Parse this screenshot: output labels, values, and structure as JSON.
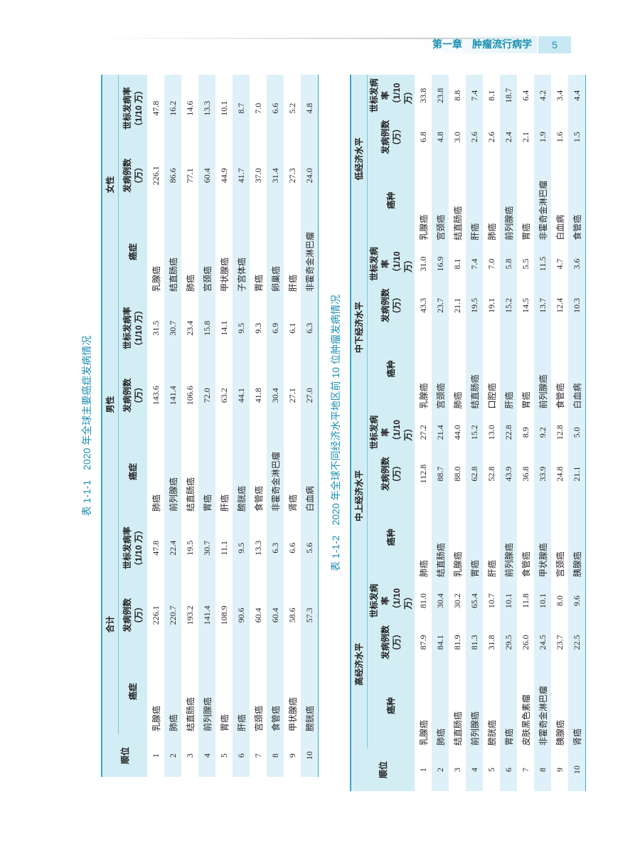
{
  "header": {
    "chapter": "第一章　肿瘤流行病学",
    "page": "5"
  },
  "tables": [
    {
      "title": "表 1-1-1　2020 年全球主要癌症发病情况",
      "rank_header": "顺位",
      "groups": [
        {
          "name": "合计",
          "columns": [
            {
              "name": "癌症"
            },
            {
              "name": "发病例数",
              "unit": "（万）"
            },
            {
              "name": "世标发病率",
              "unit": "（1/10 万）"
            }
          ]
        },
        {
          "name": "男性",
          "columns": [
            {
              "name": "癌症"
            },
            {
              "name": "发病例数",
              "unit": "（万）"
            },
            {
              "name": "世标发病率",
              "unit": "（1/10 万）"
            }
          ]
        },
        {
          "name": "女性",
          "columns": [
            {
              "name": "癌症"
            },
            {
              "name": "发病例数",
              "unit": "（万）"
            },
            {
              "name": "世标发病率",
              "unit": "（1/10 万）"
            }
          ]
        }
      ],
      "rows": [
        {
          "rank": 1,
          "cells": [
            [
              "乳腺癌",
              "226.1",
              "47.8"
            ],
            [
              "肺癌",
              "143.6",
              "31.5"
            ],
            [
              "乳腺癌",
              "226.1",
              "47.8"
            ]
          ]
        },
        {
          "rank": 2,
          "cells": [
            [
              "肺癌",
              "220.7",
              "22.4"
            ],
            [
              "前列腺癌",
              "141.4",
              "30.7"
            ],
            [
              "结直肠癌",
              "86.6",
              "16.2"
            ]
          ]
        },
        {
          "rank": 3,
          "cells": [
            [
              "结直肠癌",
              "193.2",
              "19.5"
            ],
            [
              "结直肠癌",
              "106.6",
              "23.4"
            ],
            [
              "肺癌",
              "77.1",
              "14.6"
            ]
          ]
        },
        {
          "rank": 4,
          "cells": [
            [
              "前列腺癌",
              "141.4",
              "30.7"
            ],
            [
              "胃癌",
              "72.0",
              "15.8"
            ],
            [
              "宫颈癌",
              "60.4",
              "13.3"
            ]
          ]
        },
        {
          "rank": 5,
          "cells": [
            [
              "胃癌",
              "108.9",
              "11.1"
            ],
            [
              "肝癌",
              "63.2",
              "14.1"
            ],
            [
              "甲状腺癌",
              "44.9",
              "10.1"
            ]
          ]
        },
        {
          "rank": 6,
          "cells": [
            [
              "肝癌",
              "90.6",
              "9.5"
            ],
            [
              "膀胱癌",
              "44.1",
              "9.5"
            ],
            [
              "子宫体癌",
              "41.7",
              "8.7"
            ]
          ]
        },
        {
          "rank": 7,
          "cells": [
            [
              "宫颈癌",
              "60.4",
              "13.3"
            ],
            [
              "食管癌",
              "41.8",
              "9.3"
            ],
            [
              "胃癌",
              "37.0",
              "7.0"
            ]
          ]
        },
        {
          "rank": 8,
          "cells": [
            [
              "食管癌",
              "60.4",
              "6.3"
            ],
            [
              "非霍奇金淋巴瘤",
              "30.4",
              "6.9"
            ],
            [
              "卵巢癌",
              "31.4",
              "6.6"
            ]
          ]
        },
        {
          "rank": 9,
          "cells": [
            [
              "甲状腺癌",
              "58.6",
              "6.6"
            ],
            [
              "肾癌",
              "27.1",
              "6.1"
            ],
            [
              "肝癌",
              "27.3",
              "5.2"
            ]
          ]
        },
        {
          "rank": 10,
          "cells": [
            [
              "膀胱癌",
              "57.3",
              "5.6"
            ],
            [
              "白血病",
              "27.0",
              "6.3"
            ],
            [
              "非霍奇金淋巴瘤",
              "24.0",
              "4.8"
            ]
          ]
        }
      ]
    },
    {
      "title": "表 1-1-2　2020 年全球不同经济水平地区前 10 位肿瘤发病情况",
      "rank_header": "顺位",
      "groups": [
        {
          "name": "高经济水平",
          "columns": [
            {
              "name": "癌种"
            },
            {
              "name": "发病例数",
              "unit": "（万）"
            },
            {
              "name": "世标发病率",
              "unit": "（1/10 万）"
            }
          ]
        },
        {
          "name": "中上经济水平",
          "columns": [
            {
              "name": "癌种"
            },
            {
              "name": "发病例数",
              "unit": "（万）"
            },
            {
              "name": "世标发病率",
              "unit": "（1/10 万）"
            }
          ]
        },
        {
          "name": "中下经济水平",
          "columns": [
            {
              "name": "癌种"
            },
            {
              "name": "发病例数",
              "unit": "（万）"
            },
            {
              "name": "世标发病率",
              "unit": "（1/10 万）"
            }
          ]
        },
        {
          "name": "低经济水平",
          "columns": [
            {
              "name": "癌种"
            },
            {
              "name": "发病例数",
              "unit": "（万）"
            },
            {
              "name": "世标发病率",
              "unit": "（1/10 万）"
            }
          ]
        }
      ],
      "rows": [
        {
          "rank": 1,
          "cells": [
            [
              "乳腺癌",
              "87.9",
              "81.0"
            ],
            [
              "肺癌",
              "112.8",
              "27.2"
            ],
            [
              "乳腺癌",
              "43.3",
              "31.0"
            ],
            [
              "乳腺癌",
              "6.8",
              "33.8"
            ]
          ]
        },
        {
          "rank": 2,
          "cells": [
            [
              "肺癌",
              "84.1",
              "30.4"
            ],
            [
              "结直肠癌",
              "88.7",
              "21.4"
            ],
            [
              "宫颈癌",
              "23.7",
              "16.9"
            ],
            [
              "宫颈癌",
              "4.8",
              "23.8"
            ]
          ]
        },
        {
          "rank": 3,
          "cells": [
            [
              "结直肠癌",
              "81.9",
              "30.2"
            ],
            [
              "乳腺癌",
              "88.0",
              "44.0"
            ],
            [
              "肺癌",
              "21.1",
              "8.1"
            ],
            [
              "结直肠癌",
              "3.0",
              "8.8"
            ]
          ]
        },
        {
          "rank": 4,
          "cells": [
            [
              "前列腺癌",
              "81.3",
              "65.4"
            ],
            [
              "胃癌",
              "62.8",
              "15.2"
            ],
            [
              "结直肠癌",
              "19.5",
              "7.4"
            ],
            [
              "肝癌",
              "2.6",
              "7.4"
            ]
          ]
        },
        {
          "rank": 5,
          "cells": [
            [
              "膀胱癌",
              "31.8",
              "10.7"
            ],
            [
              "肝癌",
              "52.8",
              "13.0"
            ],
            [
              "口腔癌",
              "19.1",
              "7.0"
            ],
            [
              "肺癌",
              "2.6",
              "8.1"
            ]
          ]
        },
        {
          "rank": 6,
          "cells": [
            [
              "胃癌",
              "29.5",
              "10.1"
            ],
            [
              "前列腺癌",
              "43.9",
              "22.8"
            ],
            [
              "肝癌",
              "15.2",
              "5.8"
            ],
            [
              "前列腺癌",
              "2.4",
              "18.7"
            ]
          ]
        },
        {
          "rank": 7,
          "cells": [
            [
              "皮肤黑色素瘤",
              "26.0",
              "11.8"
            ],
            [
              "食管癌",
              "36.8",
              "8.9"
            ],
            [
              "胃癌",
              "14.5",
              "5.5"
            ],
            [
              "胃癌",
              "2.1",
              "6.4"
            ]
          ]
        },
        {
          "rank": 8,
          "cells": [
            [
              "非霍奇金淋巴瘤",
              "24.5",
              "10.1"
            ],
            [
              "甲状腺癌",
              "33.9",
              "9.2"
            ],
            [
              "前列腺癌",
              "13.7",
              "11.5"
            ],
            [
              "非霍奇金淋巴瘤",
              "1.9",
              "4.2"
            ]
          ]
        },
        {
          "rank": 9,
          "cells": [
            [
              "胰腺癌",
              "23.7",
              "8.0"
            ],
            [
              "宫颈癌",
              "24.8",
              "12.8"
            ],
            [
              "食管癌",
              "12.4",
              "4.7"
            ],
            [
              "白血病",
              "1.6",
              "3.4"
            ]
          ]
        },
        {
          "rank": 10,
          "cells": [
            [
              "肾癌",
              "22.5",
              "9.6"
            ],
            [
              "胰腺癌",
              "21.1",
              "5.0"
            ],
            [
              "白血病",
              "10.3",
              "3.6"
            ],
            [
              "食管癌",
              "1.5",
              "4.4"
            ]
          ]
        }
      ]
    }
  ]
}
